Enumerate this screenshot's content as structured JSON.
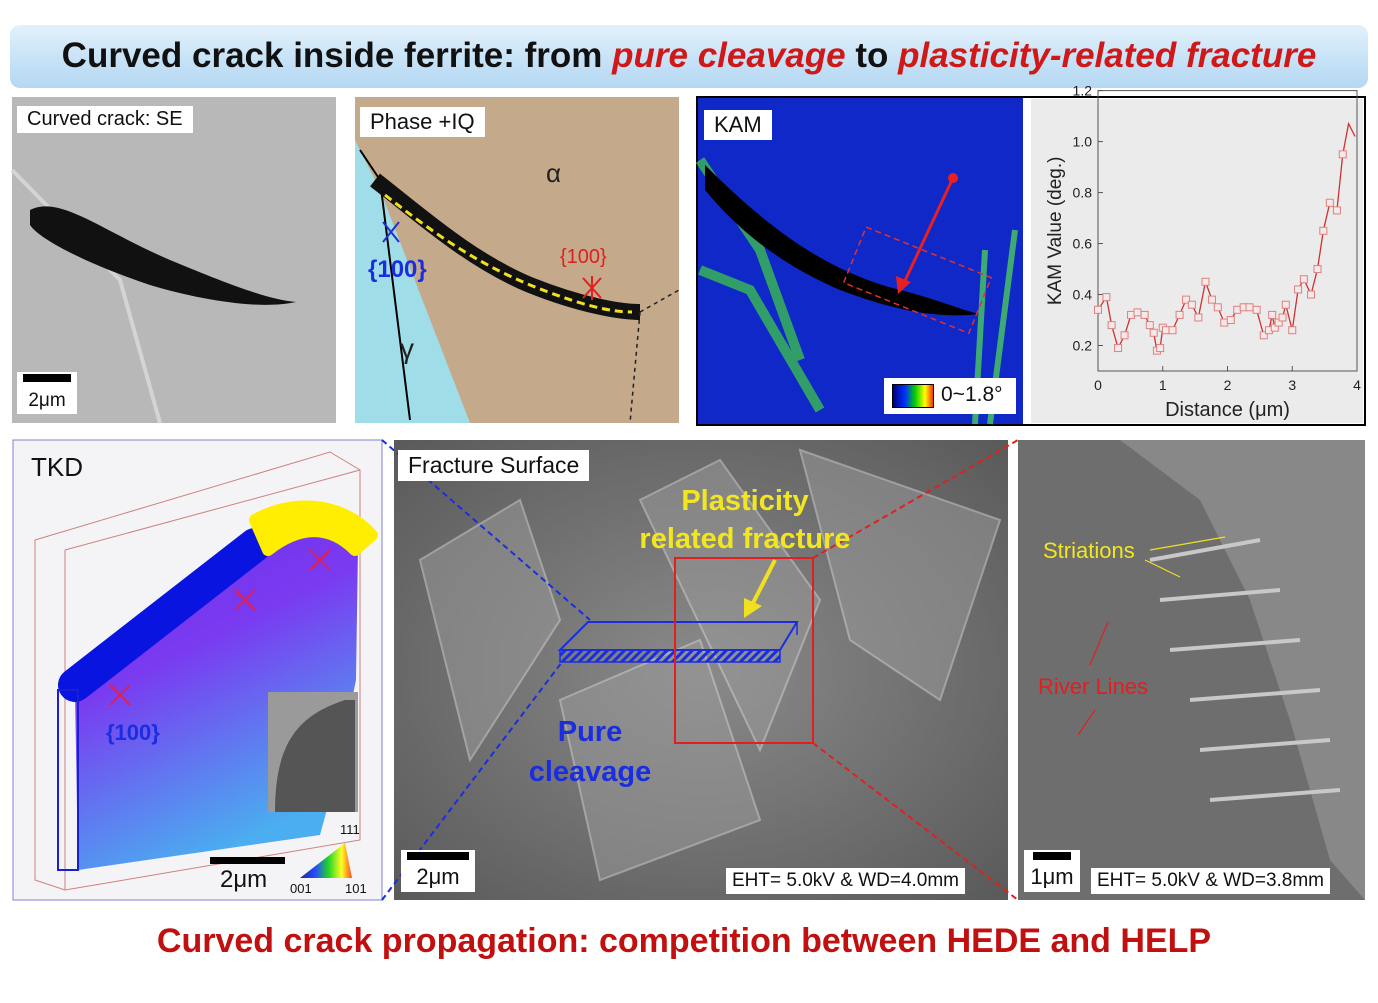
{
  "title": {
    "prefix": "Curved crack inside ferrite: from ",
    "em1": "pure cleavage",
    "mid": " to ",
    "em2": "plasticity-related fracture"
  },
  "panels": {
    "se": {
      "label": "Curved crack: SE",
      "scale": "2μm"
    },
    "phase": {
      "label": "Phase +IQ",
      "alpha": "α",
      "gamma": "γ",
      "plane_blue": "{100}",
      "plane_red": "{100}"
    },
    "kam": {
      "label": "KAM",
      "colorbar": "0~1.8°"
    },
    "tkd": {
      "label": "TKD",
      "plane": "{100}",
      "scale": "2μm",
      "ipf": {
        "top": "111",
        "left": "001",
        "right": "101"
      }
    },
    "fracture": {
      "label": "Fracture Surface",
      "plasticity": "Plasticity\nrelated fracture",
      "plasticity_1": "Plasticity",
      "plasticity_2": "related fracture",
      "cleavage_1": "Pure",
      "cleavage_2": "cleavage",
      "scale": "2μm",
      "conditions": "EHT= 5.0kV & WD=4.0mm"
    },
    "zoomed": {
      "striations": "Striations",
      "river": "River Lines",
      "scale": "1μm",
      "conditions": "EHT= 5.0kV & WD=3.8mm"
    }
  },
  "bottom_text": "Curved crack propagation: competition between HEDE and HELP",
  "chart_data": {
    "type": "line",
    "xlabel": "Distance (μm)",
    "ylabel": "KAM Value (deg.)",
    "xlim": [
      0,
      4
    ],
    "ylim": [
      0.1,
      1.2
    ],
    "xticks": [
      "0",
      "1",
      "2",
      "3",
      "4"
    ],
    "yticks": [
      "0.2",
      "0.4",
      "0.6",
      "0.8",
      "1.0",
      "1.2"
    ],
    "marker": "open-square",
    "color": "#d03030",
    "x": [
      0.0,
      0.13,
      0.21,
      0.31,
      0.41,
      0.51,
      0.61,
      0.72,
      0.8,
      0.86,
      0.91,
      0.96,
      1.0,
      1.05,
      1.15,
      1.26,
      1.36,
      1.45,
      1.55,
      1.66,
      1.76,
      1.85,
      1.95,
      2.05,
      2.15,
      2.25,
      2.34,
      2.45,
      2.56,
      2.64,
      2.69,
      2.73,
      2.79,
      2.85,
      2.9,
      3.0,
      3.09,
      3.18,
      3.29,
      3.39,
      3.48,
      3.58,
      3.69,
      3.78
    ],
    "y": [
      0.34,
      0.39,
      0.28,
      0.19,
      0.24,
      0.32,
      0.33,
      0.32,
      0.28,
      0.25,
      0.18,
      0.19,
      0.27,
      0.26,
      0.26,
      0.32,
      0.38,
      0.36,
      0.31,
      0.45,
      0.38,
      0.35,
      0.29,
      0.3,
      0.34,
      0.35,
      0.35,
      0.34,
      0.24,
      0.26,
      0.32,
      0.27,
      0.29,
      0.31,
      0.36,
      0.26,
      0.42,
      0.46,
      0.4,
      0.5,
      0.65,
      0.76,
      0.73,
      0.95
    ],
    "tail": {
      "x": [
        3.87,
        3.97
      ],
      "y": [
        1.07,
        1.02
      ]
    }
  }
}
